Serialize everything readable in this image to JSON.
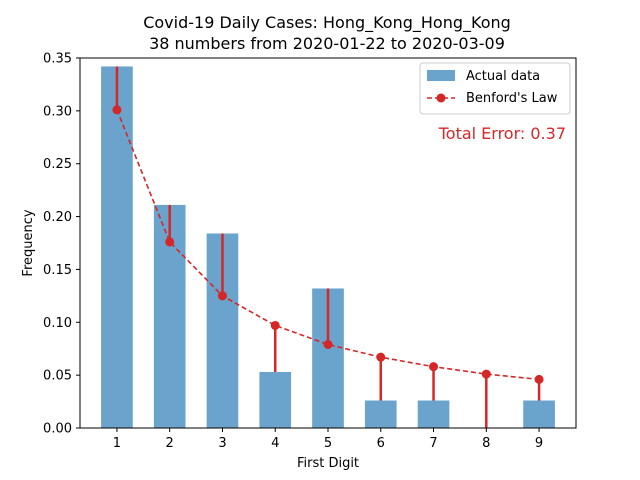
{
  "chart_data": {
    "type": "bar",
    "title": "Covid-19 Daily Cases: Hong_Kong_Hong_Kong",
    "subtitle": "38 numbers from 2020-01-22 to 2020-03-09",
    "xlabel": "First Digit",
    "ylabel": "Frequency",
    "categories": [
      "1",
      "2",
      "3",
      "4",
      "5",
      "6",
      "7",
      "8",
      "9"
    ],
    "x": [
      1,
      2,
      3,
      4,
      5,
      6,
      7,
      8,
      9
    ],
    "ylim": [
      0,
      0.35
    ],
    "xlim": [
      0.3,
      9.7
    ],
    "yticks": [
      0.0,
      0.05,
      0.1,
      0.15,
      0.2,
      0.25,
      0.3,
      0.35
    ],
    "ytick_labels": [
      "0.00",
      "0.05",
      "0.10",
      "0.15",
      "0.20",
      "0.25",
      "0.30",
      "0.35"
    ],
    "series": [
      {
        "name": "Actual data",
        "type": "bar",
        "color": "#6aa3cc",
        "values": [
          0.342,
          0.211,
          0.184,
          0.053,
          0.132,
          0.026,
          0.026,
          0.0,
          0.026
        ]
      },
      {
        "name": "Benford's Law",
        "type": "line",
        "style": "dashed",
        "marker": "circle",
        "color": "#d62728",
        "values": [
          0.301,
          0.176,
          0.125,
          0.097,
          0.079,
          0.067,
          0.058,
          0.051,
          0.046
        ]
      }
    ],
    "annotation": {
      "text": "Total Error: 0.37",
      "color": "#d62728"
    },
    "legend": "top-right",
    "grid": false
  }
}
